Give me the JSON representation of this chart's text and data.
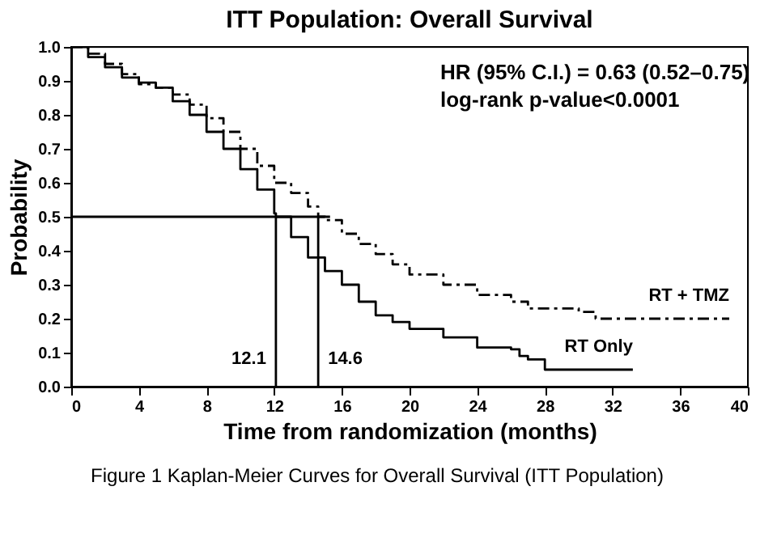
{
  "chart_data": {
    "type": "step",
    "title": "ITT Population: Overall Survival",
    "xlabel": "Time from randomization (months)",
    "ylabel": "Probability",
    "xlim": [
      0,
      40
    ],
    "xticks": [
      0,
      4,
      8,
      12,
      16,
      20,
      24,
      28,
      32,
      36,
      40
    ],
    "ylim": [
      0,
      1
    ],
    "yticks": [
      {
        "value": 0,
        "label": "0.0"
      },
      0.1,
      0.2,
      0.3,
      0.4,
      0.5,
      0.6,
      0.7,
      0.8,
      0.9,
      {
        "value": 1,
        "label": "1.0"
      }
    ],
    "grid": false,
    "series": [
      {
        "name": "RT + TMZ",
        "color": "#000000",
        "line_style": "dashed",
        "x": [
          0,
          1,
          2,
          3,
          4,
          5,
          6,
          7,
          8,
          9,
          10,
          11,
          12,
          13,
          14,
          14.6,
          15,
          16,
          17,
          18,
          19,
          20,
          22,
          24,
          26,
          27,
          28,
          30,
          31,
          38.9
        ],
        "values": [
          1.0,
          0.98,
          0.95,
          0.92,
          0.89,
          0.88,
          0.86,
          0.83,
          0.79,
          0.75,
          0.7,
          0.65,
          0.6,
          0.57,
          0.53,
          0.5,
          0.49,
          0.45,
          0.42,
          0.39,
          0.36,
          0.33,
          0.3,
          0.27,
          0.25,
          0.23,
          0.23,
          0.22,
          0.2,
          0.2
        ]
      },
      {
        "name": "RT Only",
        "color": "#000000",
        "line_style": "solid",
        "x": [
          0,
          1,
          2,
          3,
          4,
          5,
          6,
          7,
          8,
          9,
          10,
          11,
          12,
          12.1,
          13,
          14,
          15,
          16,
          17,
          18,
          19,
          20,
          22,
          24,
          26,
          26.5,
          27,
          28,
          33.2
        ],
        "values": [
          1.0,
          0.97,
          0.94,
          0.91,
          0.895,
          0.88,
          0.84,
          0.8,
          0.75,
          0.7,
          0.64,
          0.58,
          0.51,
          0.5,
          0.44,
          0.38,
          0.34,
          0.3,
          0.25,
          0.21,
          0.19,
          0.17,
          0.145,
          0.115,
          0.11,
          0.09,
          0.08,
          0.05,
          0.05
        ]
      },
      {
        "type": "line",
        "color": "#000000",
        "x": [
          0,
          15.3
        ],
        "values": [
          0.5,
          0.5
        ]
      },
      {
        "type": "line",
        "color": "#000000",
        "x": [
          12.1,
          12.1
        ],
        "values": [
          0,
          0.5
        ]
      },
      {
        "type": "line",
        "color": "#000000",
        "x": [
          14.6,
          14.6
        ],
        "values": [
          0,
          0.5
        ]
      }
    ],
    "annotations": [
      {
        "text": "12.1",
        "x": 12.1,
        "y": 0.08
      },
      {
        "text": "14.6",
        "x": 14.6,
        "y": 0.08
      },
      "HR (95% C.I.) = 0.63 (0.52–0.75)",
      "log-rank p-value<0.0001",
      "Figure 1 Kaplan-Meier Curves for Overall Survival (ITT Population)"
    ]
  }
}
